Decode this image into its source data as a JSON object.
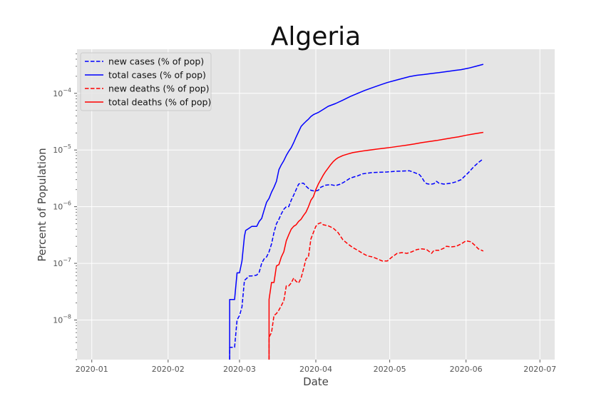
{
  "chart_data": {
    "type": "line",
    "title": "Algeria",
    "xlabel": "Date",
    "ylabel": "Percent of Population",
    "yscale": "log",
    "ylim": [
      2e-09,
      0.0006
    ],
    "xlim_days": [
      -6,
      188
    ],
    "x_ticks": [
      {
        "day": 0,
        "label": "2020-01"
      },
      {
        "day": 31,
        "label": "2020-02"
      },
      {
        "day": 60,
        "label": "2020-03"
      },
      {
        "day": 91,
        "label": "2020-04"
      },
      {
        "day": 121,
        "label": "2020-05"
      },
      {
        "day": 152,
        "label": "2020-06"
      },
      {
        "day": 182,
        "label": "2020-07"
      }
    ],
    "y_ticks": [
      {
        "value": 1e-08,
        "base": "10",
        "exp": "−8"
      },
      {
        "value": 1e-07,
        "base": "10",
        "exp": "−7"
      },
      {
        "value": 1e-06,
        "base": "10",
        "exp": "−6"
      },
      {
        "value": 1e-05,
        "base": "10",
        "exp": "−5"
      },
      {
        "value": 0.0001,
        "base": "10",
        "exp": "−4"
      }
    ],
    "grid": true,
    "legend_position": "top-left",
    "series": [
      {
        "name": "new cases (% of pop)",
        "color": "#0000ff",
        "dash": "dashed",
        "points": [
          [
            56,
            1e-09
          ],
          [
            56,
            3.3e-09
          ],
          [
            58,
            3.3e-09
          ],
          [
            59,
            1e-08
          ],
          [
            60,
            1.2e-08
          ],
          [
            61,
            1.7e-08
          ],
          [
            62,
            5e-08
          ],
          [
            64,
            6e-08
          ],
          [
            65,
            6e-08
          ],
          [
            67,
            6.2e-08
          ],
          [
            68,
            7e-08
          ],
          [
            69,
            1e-07
          ],
          [
            70,
            1.2e-07
          ],
          [
            71,
            1.3e-07
          ],
          [
            72,
            1.6e-07
          ],
          [
            73,
            2.2e-07
          ],
          [
            74,
            3.5e-07
          ],
          [
            75,
            5e-07
          ],
          [
            76,
            6e-07
          ],
          [
            77,
            7.5e-07
          ],
          [
            78,
            9e-07
          ],
          [
            79,
            1e-06
          ],
          [
            80,
            1e-06
          ],
          [
            81,
            1.3e-06
          ],
          [
            82,
            1.6e-06
          ],
          [
            83,
            2e-06
          ],
          [
            84,
            2.5e-06
          ],
          [
            85,
            2.6e-06
          ],
          [
            86,
            2.6e-06
          ],
          [
            87,
            2.3e-06
          ],
          [
            88,
            2.1e-06
          ],
          [
            89,
            1.95e-06
          ],
          [
            90,
            1.9e-06
          ],
          [
            91,
            1.9e-06
          ],
          [
            92,
            1.95e-06
          ],
          [
            93,
            2.2e-06
          ],
          [
            95,
            2.4e-06
          ],
          [
            97,
            2.45e-06
          ],
          [
            99,
            2.35e-06
          ],
          [
            101,
            2.5e-06
          ],
          [
            103,
            2.8e-06
          ],
          [
            105,
            3.2e-06
          ],
          [
            108,
            3.5e-06
          ],
          [
            110,
            3.8e-06
          ],
          [
            112,
            3.9e-06
          ],
          [
            114,
            4e-06
          ],
          [
            117,
            4.05e-06
          ],
          [
            120,
            4.1e-06
          ],
          [
            123,
            4.2e-06
          ],
          [
            126,
            4.25e-06
          ],
          [
            129,
            4.3e-06
          ],
          [
            131,
            4e-06
          ],
          [
            133,
            3.7e-06
          ],
          [
            134,
            3.3e-06
          ],
          [
            135,
            2.8e-06
          ],
          [
            136,
            2.55e-06
          ],
          [
            137,
            2.5e-06
          ],
          [
            138,
            2.5e-06
          ],
          [
            139,
            2.55e-06
          ],
          [
            140,
            2.8e-06
          ],
          [
            141,
            2.6e-06
          ],
          [
            143,
            2.5e-06
          ],
          [
            146,
            2.6e-06
          ],
          [
            148,
            2.75e-06
          ],
          [
            150,
            3e-06
          ],
          [
            151,
            3.3e-06
          ],
          [
            153,
            4e-06
          ],
          [
            155,
            5e-06
          ],
          [
            157,
            6e-06
          ],
          [
            159,
            7e-06
          ]
        ]
      },
      {
        "name": "total cases (% of pop)",
        "color": "#0000ff",
        "dash": "solid",
        "points": [
          [
            56,
            1e-09
          ],
          [
            56,
            2.3e-08
          ],
          [
            58,
            2.3e-08
          ],
          [
            59,
            6.8e-08
          ],
          [
            60,
            6.8e-08
          ],
          [
            61,
            1.1e-07
          ],
          [
            62,
            3e-07
          ],
          [
            62.5,
            3.8e-07
          ],
          [
            64,
            4.2e-07
          ],
          [
            65,
            4.5e-07
          ],
          [
            67,
            4.5e-07
          ],
          [
            68,
            5.5e-07
          ],
          [
            69,
            6.2e-07
          ],
          [
            70,
            8.7e-07
          ],
          [
            71,
            1.2e-06
          ],
          [
            72,
            1.4e-06
          ],
          [
            73,
            1.8e-06
          ],
          [
            74,
            2.2e-06
          ],
          [
            75,
            2.8e-06
          ],
          [
            76,
            4.5e-06
          ],
          [
            77,
            5.5e-06
          ],
          [
            78,
            6.5e-06
          ],
          [
            79,
            8e-06
          ],
          [
            80,
            9.5e-06
          ],
          [
            81,
            1.1e-05
          ],
          [
            82,
            1.35e-05
          ],
          [
            83,
            1.7e-05
          ],
          [
            84,
            2.1e-05
          ],
          [
            85,
            2.6e-05
          ],
          [
            86,
            2.9e-05
          ],
          [
            87,
            3.2e-05
          ],
          [
            88,
            3.5e-05
          ],
          [
            89,
            3.9e-05
          ],
          [
            90,
            4.2e-05
          ],
          [
            92,
            4.6e-05
          ],
          [
            94,
            5.2e-05
          ],
          [
            96,
            5.9e-05
          ],
          [
            99,
            6.6e-05
          ],
          [
            102,
            7.6e-05
          ],
          [
            105,
            8.8e-05
          ],
          [
            108,
            0.0001
          ],
          [
            111,
            0.000113
          ],
          [
            114,
            0.000126
          ],
          [
            117,
            0.00014
          ],
          [
            120,
            0.000155
          ],
          [
            123,
            0.000168
          ],
          [
            126,
            0.000182
          ],
          [
            129,
            0.000197
          ],
          [
            132,
            0.000208
          ],
          [
            135,
            0.000215
          ],
          [
            138,
            0.000224
          ],
          [
            141,
            0.000232
          ],
          [
            144,
            0.000242
          ],
          [
            147,
            0.000252
          ],
          [
            150,
            0.000262
          ],
          [
            153,
            0.000278
          ],
          [
            156,
            0.0003
          ],
          [
            159,
            0.000325
          ]
        ]
      },
      {
        "name": "new deaths (% of pop)",
        "color": "#ff0000",
        "dash": "dashed",
        "points": [
          [
            72,
            1e-09
          ],
          [
            72,
            5e-09
          ],
          [
            73,
            6e-09
          ],
          [
            74,
            1.2e-08
          ],
          [
            75,
            1.3e-08
          ],
          [
            76,
            1.5e-08
          ],
          [
            77,
            1.8e-08
          ],
          [
            78,
            2.2e-08
          ],
          [
            79,
            4e-08
          ],
          [
            80,
            4e-08
          ],
          [
            81,
            4.5e-08
          ],
          [
            82,
            5.5e-08
          ],
          [
            83,
            4.8e-08
          ],
          [
            84,
            4.5e-08
          ],
          [
            85,
            5.5e-08
          ],
          [
            86,
            8e-08
          ],
          [
            87,
            1.2e-07
          ],
          [
            88,
            1.3e-07
          ],
          [
            89,
            2.7e-07
          ],
          [
            90,
            3.5e-07
          ],
          [
            91,
            4.5e-07
          ],
          [
            92,
            5e-07
          ],
          [
            93,
            5.2e-07
          ],
          [
            94,
            4.8e-07
          ],
          [
            96,
            4.6e-07
          ],
          [
            98,
            4.2e-07
          ],
          [
            100,
            3.5e-07
          ],
          [
            102,
            2.6e-07
          ],
          [
            104,
            2.2e-07
          ],
          [
            106,
            1.9e-07
          ],
          [
            108,
            1.7e-07
          ],
          [
            110,
            1.5e-07
          ],
          [
            112,
            1.35e-07
          ],
          [
            114,
            1.3e-07
          ],
          [
            116,
            1.2e-07
          ],
          [
            118,
            1.1e-07
          ],
          [
            120,
            1.1e-07
          ],
          [
            122,
            1.3e-07
          ],
          [
            124,
            1.5e-07
          ],
          [
            126,
            1.55e-07
          ],
          [
            128,
            1.5e-07
          ],
          [
            130,
            1.6e-07
          ],
          [
            132,
            1.75e-07
          ],
          [
            134,
            1.8e-07
          ],
          [
            136,
            1.75e-07
          ],
          [
            138,
            1.5e-07
          ],
          [
            139,
            1.7e-07
          ],
          [
            141,
            1.7e-07
          ],
          [
            143,
            1.85e-07
          ],
          [
            144,
            2e-07
          ],
          [
            146,
            1.95e-07
          ],
          [
            148,
            2e-07
          ],
          [
            150,
            2.2e-07
          ],
          [
            152,
            2.5e-07
          ],
          [
            154,
            2.4e-07
          ],
          [
            156,
            2e-07
          ],
          [
            157,
            1.8e-07
          ],
          [
            159,
            1.65e-07
          ]
        ]
      },
      {
        "name": "total deaths (% of pop)",
        "color": "#ff0000",
        "dash": "solid",
        "points": [
          [
            72,
            1e-09
          ],
          [
            72,
            2.3e-08
          ],
          [
            73,
            4.6e-08
          ],
          [
            74,
            4.6e-08
          ],
          [
            75,
            9e-08
          ],
          [
            76,
            9.5e-08
          ],
          [
            77,
            1.3e-07
          ],
          [
            78,
            1.6e-07
          ],
          [
            79,
            2.5e-07
          ],
          [
            80,
            3.2e-07
          ],
          [
            81,
            4e-07
          ],
          [
            82,
            4.5e-07
          ],
          [
            83,
            4.8e-07
          ],
          [
            84,
            5.5e-07
          ],
          [
            85,
            6e-07
          ],
          [
            86,
            7e-07
          ],
          [
            87,
            8e-07
          ],
          [
            88,
            1e-06
          ],
          [
            89,
            1.3e-06
          ],
          [
            90,
            1.5e-06
          ],
          [
            91,
            2e-06
          ],
          [
            92,
            2.5e-06
          ],
          [
            93,
            3e-06
          ],
          [
            94,
            3.6e-06
          ],
          [
            95,
            4.2e-06
          ],
          [
            96,
            4.8e-06
          ],
          [
            97,
            5.5e-06
          ],
          [
            98,
            6.2e-06
          ],
          [
            99,
            6.8e-06
          ],
          [
            100,
            7.3e-06
          ],
          [
            102,
            8e-06
          ],
          [
            104,
            8.5e-06
          ],
          [
            106,
            9e-06
          ],
          [
            108,
            9.3e-06
          ],
          [
            110,
            9.6e-06
          ],
          [
            113,
            1e-05
          ],
          [
            116,
            1.04e-05
          ],
          [
            119,
            1.08e-05
          ],
          [
            122,
            1.12e-05
          ],
          [
            125,
            1.17e-05
          ],
          [
            128,
            1.22e-05
          ],
          [
            131,
            1.28e-05
          ],
          [
            134,
            1.35e-05
          ],
          [
            137,
            1.41e-05
          ],
          [
            140,
            1.47e-05
          ],
          [
            143,
            1.55e-05
          ],
          [
            146,
            1.63e-05
          ],
          [
            149,
            1.71e-05
          ],
          [
            152,
            1.82e-05
          ],
          [
            155,
            1.92e-05
          ],
          [
            159,
            2.05e-05
          ]
        ]
      }
    ]
  }
}
